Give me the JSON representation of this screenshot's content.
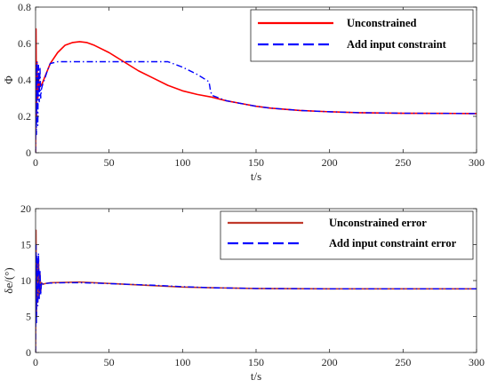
{
  "chart_data": [
    {
      "type": "line",
      "xlabel": "t/s",
      "ylabel": "Φ",
      "xlim": [
        0,
        300
      ],
      "ylim": [
        0,
        0.8
      ],
      "xticks": [
        0,
        50,
        100,
        150,
        200,
        250,
        300
      ],
      "yticks": [
        0,
        0.2,
        0.4,
        0.6,
        0.8
      ],
      "grid": false,
      "legend_position": "top-right",
      "series": [
        {
          "name": "Unconstrained",
          "color": "#ff0000",
          "style": "solid",
          "x": [
            0,
            0.3,
            0.6,
            1,
            1.5,
            2,
            2.5,
            3,
            4,
            5,
            7,
            10,
            15,
            20,
            25,
            30,
            35,
            40,
            50,
            60,
            70,
            80,
            90,
            100,
            110,
            120,
            130,
            140,
            150,
            160,
            180,
            200,
            220,
            250,
            280,
            300
          ],
          "y": [
            0.0,
            0.68,
            0.2,
            0.5,
            0.3,
            0.42,
            0.35,
            0.38,
            0.37,
            0.39,
            0.43,
            0.49,
            0.55,
            0.59,
            0.605,
            0.61,
            0.605,
            0.59,
            0.55,
            0.5,
            0.45,
            0.41,
            0.37,
            0.34,
            0.32,
            0.305,
            0.285,
            0.27,
            0.255,
            0.245,
            0.232,
            0.225,
            0.22,
            0.217,
            0.216,
            0.215
          ]
        },
        {
          "name": "Add input constraint",
          "color": "#0000ff",
          "style": "dashdot",
          "x": [
            0,
            0.3,
            0.6,
            1,
            1.5,
            2,
            2.5,
            3,
            3.5,
            4,
            5,
            6,
            8,
            10,
            15,
            20,
            40,
            60,
            80,
            90,
            100,
            110,
            118,
            119,
            120,
            130,
            140,
            150,
            160,
            180,
            200,
            220,
            250,
            280,
            300
          ],
          "y": [
            0.0,
            0.48,
            0.1,
            0.5,
            0.15,
            0.48,
            0.28,
            0.47,
            0.3,
            0.35,
            0.38,
            0.4,
            0.45,
            0.49,
            0.5,
            0.5,
            0.5,
            0.5,
            0.5,
            0.5,
            0.47,
            0.43,
            0.39,
            0.34,
            0.315,
            0.285,
            0.27,
            0.255,
            0.245,
            0.232,
            0.225,
            0.22,
            0.217,
            0.216,
            0.215
          ]
        }
      ]
    },
    {
      "type": "line",
      "xlabel": "t/s",
      "ylabel": "δe/(°)",
      "xlim": [
        0,
        300
      ],
      "ylim": [
        0,
        20
      ],
      "xticks": [
        0,
        50,
        100,
        150,
        200,
        250,
        300
      ],
      "yticks": [
        0,
        5,
        10,
        15,
        20
      ],
      "grid": false,
      "legend_position": "top-right",
      "series": [
        {
          "name": "Unconstrained error",
          "color": "#c0392b",
          "style": "solid",
          "x": [
            0,
            0.3,
            0.6,
            1,
            1.5,
            2,
            2.5,
            3,
            3.5,
            4,
            5,
            7,
            10,
            20,
            30,
            40,
            60,
            80,
            100,
            120,
            150,
            200,
            250,
            300
          ],
          "y": [
            0.0,
            17.0,
            5.0,
            12.5,
            7.0,
            13.0,
            8.0,
            11.0,
            8.5,
            9.7,
            9.5,
            9.6,
            9.7,
            9.75,
            9.8,
            9.7,
            9.5,
            9.3,
            9.1,
            9.0,
            8.9,
            8.85,
            8.85,
            8.85
          ]
        },
        {
          "name": "Add input constraint error",
          "color": "#0000ff",
          "style": "dashdot",
          "x": [
            0,
            0.3,
            0.6,
            1,
            1.5,
            2,
            2.5,
            3,
            3.5,
            4,
            5,
            7,
            10,
            20,
            30,
            40,
            60,
            80,
            100,
            120,
            150,
            200,
            250,
            300
          ],
          "y": [
            0.0,
            15.0,
            4.0,
            13.5,
            6.5,
            13.8,
            7.5,
            11.5,
            8.0,
            9.8,
            9.5,
            9.6,
            9.65,
            9.7,
            9.7,
            9.65,
            9.5,
            9.35,
            9.15,
            9.0,
            8.9,
            8.85,
            8.85,
            8.85
          ]
        }
      ]
    }
  ]
}
